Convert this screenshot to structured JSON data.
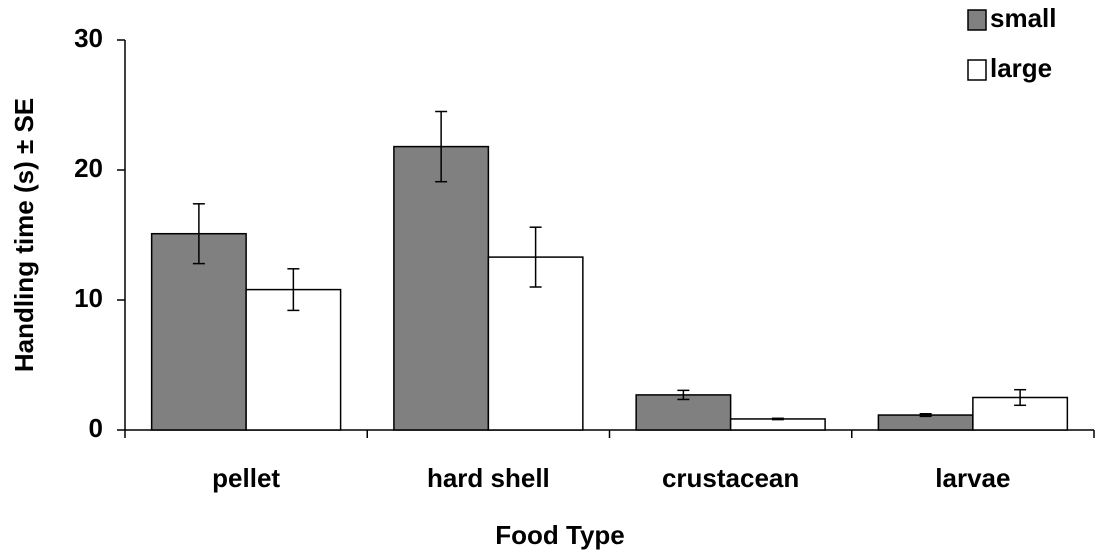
{
  "chart_data": {
    "type": "bar",
    "x_label": "Food Type",
    "y_label": "Handling time (s) ± SE",
    "categories": [
      "pellet",
      "hard shell",
      "crustacean",
      "larvae"
    ],
    "series": [
      {
        "name": "small",
        "color": "#808080",
        "values": [
          15.1,
          21.8,
          2.7,
          1.15
        ],
        "errors": [
          2.3,
          2.7,
          0.35,
          0.1
        ]
      },
      {
        "name": "large",
        "color": "#ffffff",
        "values": [
          10.8,
          13.3,
          0.85,
          2.5
        ],
        "errors": [
          1.6,
          2.3,
          0.05,
          0.6
        ]
      }
    ],
    "ylim": [
      0,
      30
    ],
    "yticks": [
      0,
      10,
      20,
      30
    ],
    "legend": "upper right"
  }
}
